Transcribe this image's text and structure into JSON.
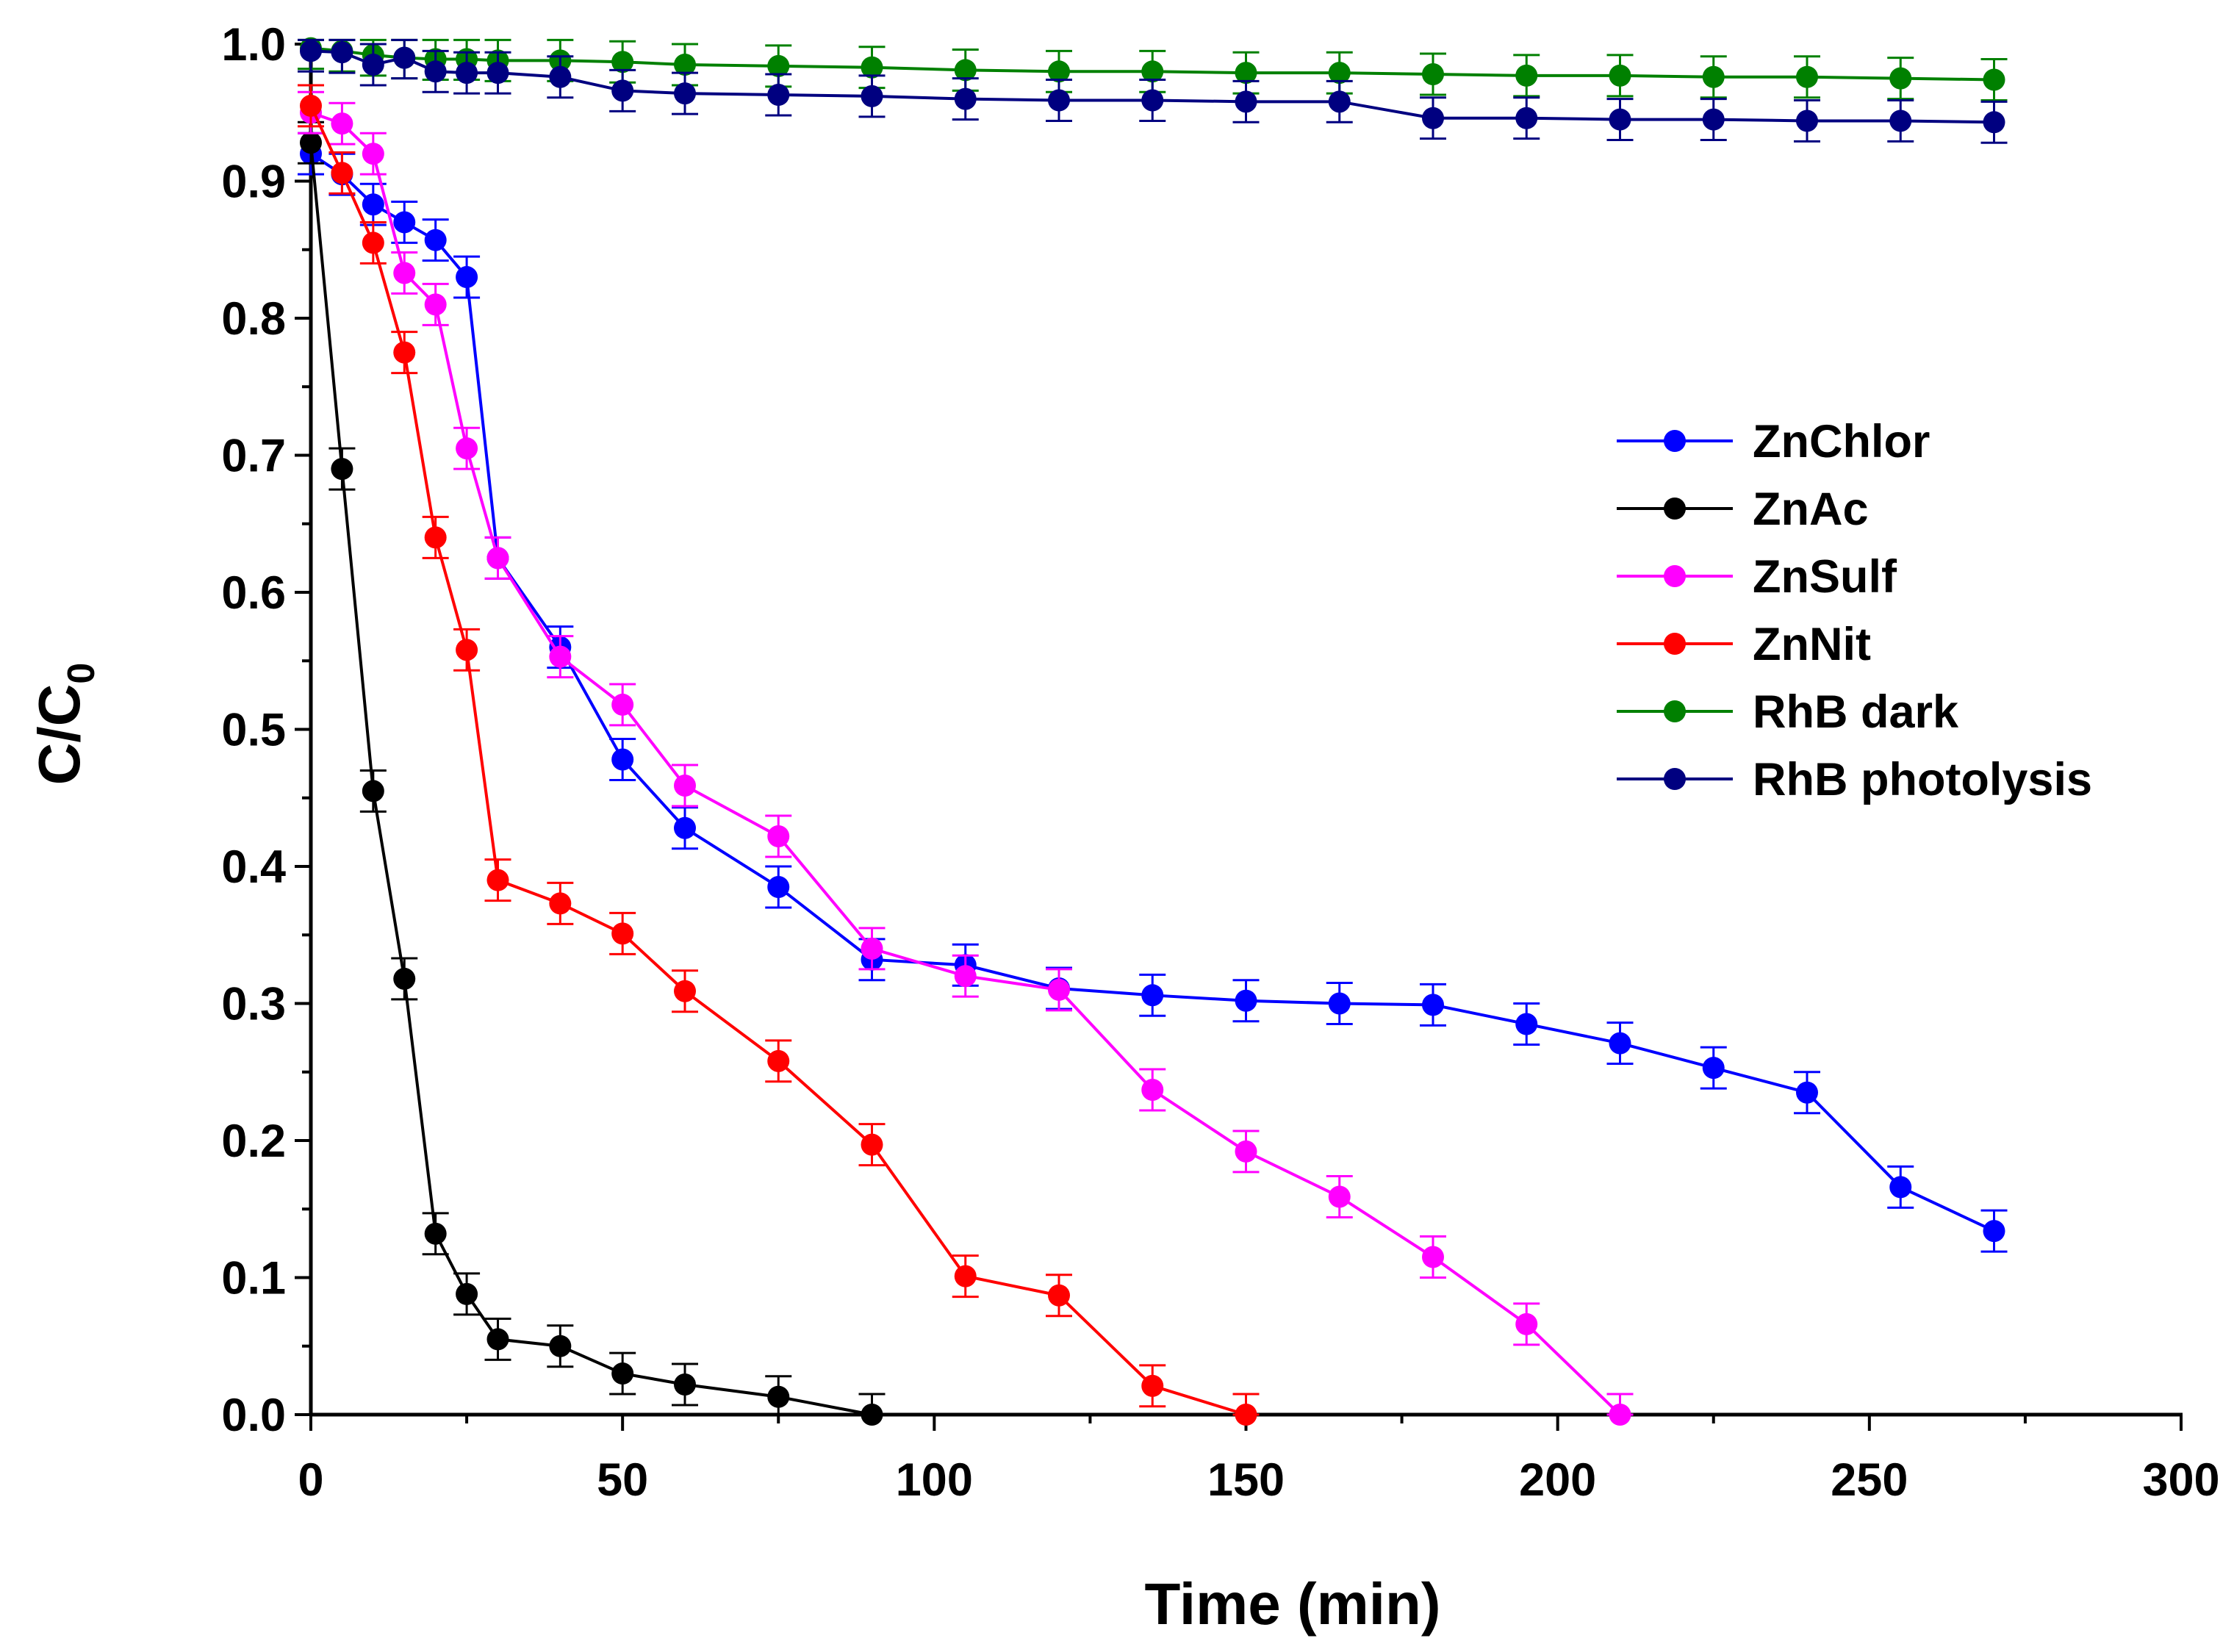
{
  "chart_data": {
    "type": "line",
    "title": "",
    "xlabel": "Time (min)",
    "ylabel": "C/C",
    "ylabel_subscript": "0",
    "xlim": [
      0,
      300
    ],
    "ylim": [
      0.0,
      1.0
    ],
    "x_ticks": [
      0,
      50,
      100,
      150,
      200,
      250,
      300
    ],
    "x_tick_labels": [
      "0",
      "50",
      "100",
      "150",
      "200",
      "250",
      "300"
    ],
    "y_ticks": [
      0.0,
      0.1,
      0.2,
      0.3,
      0.4,
      0.5,
      0.6,
      0.7,
      0.8,
      0.9,
      1.0
    ],
    "y_tick_labels": [
      "0.0",
      "0.1",
      "0.2",
      "0.3",
      "0.4",
      "0.5",
      "0.6",
      "0.7",
      "0.8",
      "0.9",
      "1.0"
    ],
    "grid": false,
    "legend_position": "right-middle",
    "error_bar": 0.015,
    "series": [
      {
        "name": "ZnChlor",
        "color": "#0000ff",
        "x": [
          0,
          5,
          10,
          15,
          20,
          25,
          30,
          40,
          50,
          60,
          75,
          90,
          105,
          120,
          135,
          150,
          165,
          180,
          195,
          210,
          225,
          240,
          255,
          270
        ],
        "y": [
          0.92,
          0.905,
          0.883,
          0.87,
          0.857,
          0.83,
          0.625,
          0.56,
          0.478,
          0.428,
          0.385,
          0.332,
          0.328,
          0.311,
          0.306,
          0.302,
          0.3,
          0.299,
          0.285,
          0.271,
          0.253,
          0.235,
          0.166,
          0.134
        ]
      },
      {
        "name": "ZnAc",
        "color": "#000000",
        "x": [
          0,
          5,
          10,
          15,
          20,
          25,
          30,
          40,
          50,
          60,
          75,
          90
        ],
        "y": [
          0.928,
          0.69,
          0.455,
          0.318,
          0.132,
          0.088,
          0.055,
          0.05,
          0.03,
          0.022,
          0.013,
          0.0
        ]
      },
      {
        "name": "ZnSulf",
        "color": "#ff00ff",
        "x": [
          0,
          5,
          10,
          15,
          20,
          25,
          30,
          40,
          50,
          60,
          75,
          90,
          105,
          120,
          135,
          150,
          165,
          180,
          195,
          210
        ],
        "y": [
          0.95,
          0.942,
          0.92,
          0.833,
          0.81,
          0.705,
          0.625,
          0.553,
          0.518,
          0.459,
          0.422,
          0.34,
          0.32,
          0.31,
          0.237,
          0.192,
          0.159,
          0.115,
          0.066,
          0.0
        ]
      },
      {
        "name": "ZnNit",
        "color": "#ff0000",
        "x": [
          0,
          5,
          10,
          15,
          20,
          25,
          30,
          40,
          50,
          60,
          75,
          90,
          105,
          120,
          135,
          150
        ],
        "y": [
          0.955,
          0.906,
          0.855,
          0.775,
          0.64,
          0.558,
          0.39,
          0.373,
          0.351,
          0.309,
          0.258,
          0.197,
          0.101,
          0.087,
          0.021,
          0.0
        ]
      },
      {
        "name": "RhB dark",
        "color": "#008000",
        "x": [
          0,
          5,
          10,
          15,
          20,
          25,
          30,
          40,
          50,
          60,
          75,
          90,
          105,
          120,
          135,
          150,
          165,
          180,
          195,
          210,
          225,
          240,
          255,
          270
        ],
        "y": [
          0.997,
          0.995,
          0.992,
          0.99,
          0.989,
          0.989,
          0.988,
          0.988,
          0.987,
          0.985,
          0.984,
          0.983,
          0.981,
          0.98,
          0.98,
          0.979,
          0.979,
          0.978,
          0.977,
          0.977,
          0.976,
          0.976,
          0.975,
          0.974
        ]
      },
      {
        "name": "RhB photolysis",
        "color": "#000080",
        "x": [
          0,
          5,
          10,
          15,
          20,
          25,
          30,
          40,
          50,
          60,
          75,
          90,
          105,
          120,
          135,
          150,
          165,
          180,
          195,
          210,
          225,
          240,
          255,
          270
        ],
        "y": [
          0.995,
          0.994,
          0.985,
          0.99,
          0.98,
          0.979,
          0.979,
          0.976,
          0.966,
          0.964,
          0.963,
          0.962,
          0.96,
          0.959,
          0.959,
          0.958,
          0.958,
          0.946,
          0.946,
          0.945,
          0.945,
          0.944,
          0.944,
          0.943
        ]
      }
    ]
  }
}
